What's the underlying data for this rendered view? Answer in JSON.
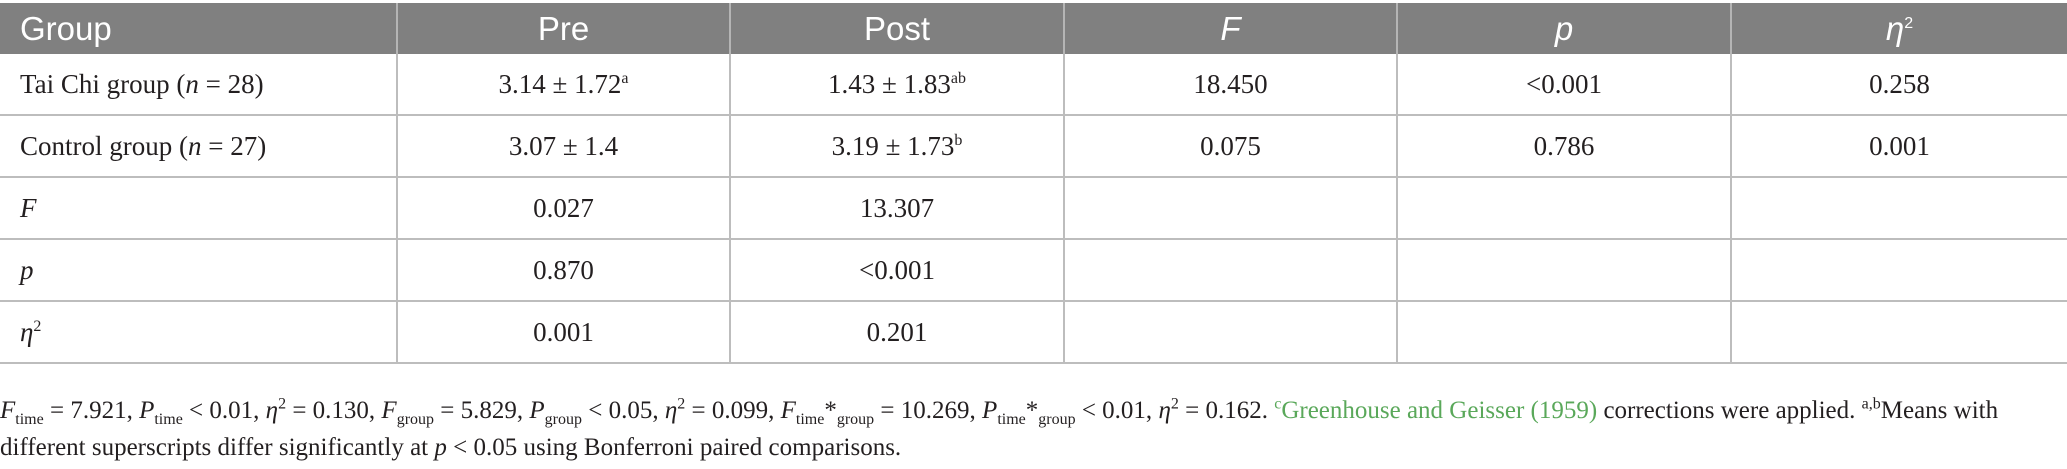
{
  "table": {
    "headers": [
      "Group",
      "Pre",
      "Post",
      "F",
      "p",
      "η"
    ],
    "header_eta_sup": "2",
    "rows": [
      {
        "label": "Tai Chi group (",
        "n_var": "n",
        "n_val": " = 28)",
        "pre": "3.14 ± 1.72",
        "pre_sup": "a",
        "post": "1.43 ± 1.83",
        "post_sup": "ab",
        "F": "18.450",
        "p": "<0.001",
        "eta2": "0.258"
      },
      {
        "label": "Control group (",
        "n_var": "n",
        "n_val": " = 27)",
        "pre": "3.07 ± 1.4",
        "pre_sup": "",
        "post": "3.19 ± 1.73",
        "post_sup": "b",
        "F": "0.075",
        "p": "0.786",
        "eta2": "0.001"
      },
      {
        "label": "F",
        "pre": "0.027",
        "post": "13.307"
      },
      {
        "label": "p",
        "pre": "0.870",
        "post": "<0.001"
      },
      {
        "label": "η",
        "label_sup": "2",
        "pre": "0.001",
        "post": "0.201"
      }
    ]
  },
  "footnote": {
    "F": "F",
    "P": "P",
    "eta": "η",
    "sq": "2",
    "p": "p",
    "time": "time",
    "group": "group",
    "asterisk": "*",
    "t1": " = 7.921, ",
    "t2": " < 0.01, ",
    "t3": " = 0.130, ",
    "t4": " = 5.829, ",
    "t5": " < 0.05, ",
    "t6": " = 0.099, ",
    "t7": " = 10.269, ",
    "t8": " < 0.01, ",
    "t9": " = 0.162. ",
    "c_sup": "c",
    "citation": "Greenhouse and Geisser (1959)",
    "t10": " corrections were applied. ",
    "ab_sup": "a,b",
    "t11": "Means with different superscripts differ significantly at ",
    "t12": " < 0.05 using Bonferroni paired comparisons."
  }
}
